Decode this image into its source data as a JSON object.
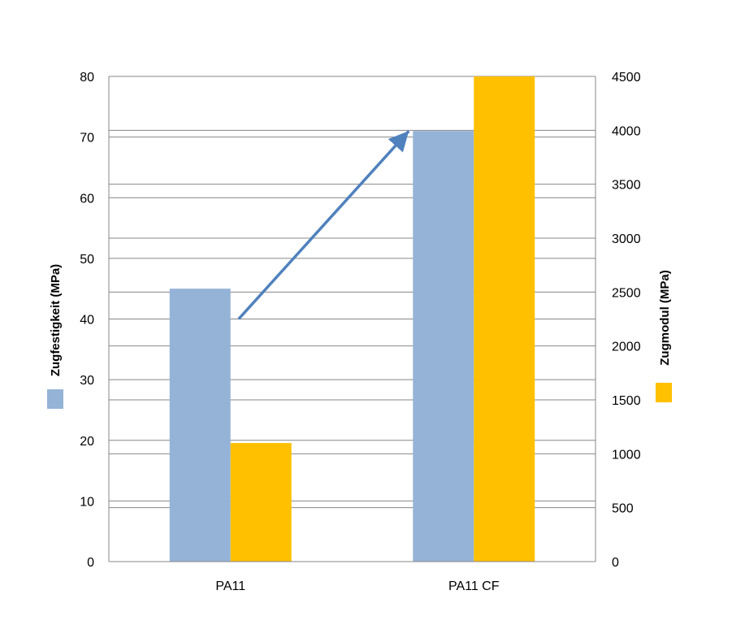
{
  "chart_data": {
    "type": "bar",
    "categories": [
      "PA11",
      "PA11 CF"
    ],
    "series": [
      {
        "name": "Zugfestigkeit (MPa)",
        "axis": "left",
        "color": "#95B3D7",
        "values": [
          45,
          71
        ]
      },
      {
        "name": "Zugmodul (MPa)",
        "axis": "right",
        "color": "#FFC000",
        "values": [
          1100,
          4500
        ]
      }
    ],
    "ylabel": "Zugfestigkeit (MPa)",
    "y2label": "Zugmodul (MPa)",
    "ylim": [
      0,
      80
    ],
    "y2lim": [
      0,
      4500
    ],
    "yticks": [
      "0",
      "10",
      "20",
      "30",
      "40",
      "50",
      "60",
      "70",
      "80"
    ],
    "y2ticks": [
      "0",
      "500",
      "1000",
      "1500",
      "2000",
      "2500",
      "3000",
      "3500",
      "4000",
      "4500"
    ],
    "grid": true,
    "legend": "axis-titles",
    "annotation": {
      "type": "arrow",
      "from": {
        "x": "PA11",
        "y": 40
      },
      "to": {
        "x": "PA11 CF",
        "y": 71
      },
      "color": "#4F81BD"
    }
  }
}
